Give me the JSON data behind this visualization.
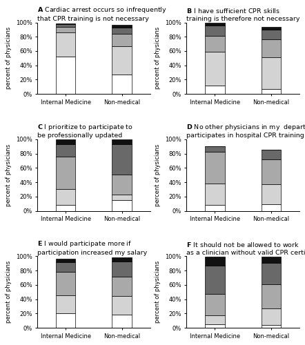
{
  "panels": [
    {
      "label": "A",
      "title": "Cardiac arrest occurs so infrequently\nthat CPR training is not necessary",
      "groups": [
        "Internal Medicine",
        "Non-medical"
      ],
      "values": [
        [
          52,
          34,
          8,
          4,
          1
        ],
        [
          27,
          40,
          17,
          9,
          4
        ]
      ]
    },
    {
      "label": "B",
      "title": "I have sufficient CPR skills\ntraining is therefore not necessary",
      "groups": [
        "Internal Medicine",
        "Non-medical"
      ],
      "values": [
        [
          12,
          47,
          22,
          15,
          4
        ],
        [
          7,
          44,
          25,
          14,
          4
        ]
      ]
    },
    {
      "label": "C",
      "title": "I prioritize to participate to\nbe professionally updated",
      "groups": [
        "Internal Medicine",
        "Non-medical"
      ],
      "values": [
        [
          8,
          22,
          46,
          17,
          7
        ],
        [
          15,
          8,
          28,
          42,
          7
        ]
      ]
    },
    {
      "label": "D",
      "title": "No other physicians in my  department\nparticipates in hospital CPR training",
      "groups": [
        "Internal Medicine",
        "Non-medical"
      ],
      "values": [
        [
          8,
          30,
          45,
          7,
          0
        ],
        [
          9,
          28,
          35,
          13,
          0
        ]
      ]
    },
    {
      "label": "E",
      "title": "I would participate more if\nparticipation increased my salary",
      "groups": [
        "Internal Medicine",
        "Non-medical"
      ],
      "values": [
        [
          20,
          25,
          33,
          14,
          5
        ],
        [
          18,
          26,
          27,
          22,
          5
        ]
      ]
    },
    {
      "label": "F",
      "title": "It should not be allowed to work\nas a clinician without valid CPR certificate",
      "groups": [
        "Internal Medicine",
        "Non-medical"
      ],
      "values": [
        [
          5,
          12,
          30,
          40,
          12
        ],
        [
          4,
          23,
          34,
          30,
          8
        ]
      ]
    }
  ],
  "colors": [
    "#ffffff",
    "#d3d3d3",
    "#a9a9a9",
    "#696969",
    "#111111"
  ],
  "ylabel": "percent of physicians",
  "bar_width": 0.35,
  "title_fontsize": 6.8,
  "label_fontsize": 6.0,
  "tick_fontsize": 6.0,
  "background_color": "#ffffff"
}
